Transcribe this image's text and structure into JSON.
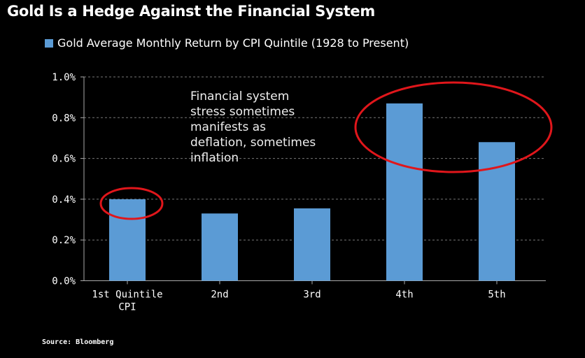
{
  "title": "Gold Is a Hedge Against the Financial System",
  "source": "Source: Bloomberg",
  "annotation": [
    "Financial system",
    "stress sometimes",
    "manifests as",
    "deflation, sometimes",
    "inflation"
  ],
  "colors": {
    "bar": "#5b9bd5",
    "highlight": "#e0161b"
  },
  "chart_data": {
    "type": "bar",
    "title": "Gold Is a Hedge Against the Financial System",
    "legend": [
      "Gold Average Monthly Return by CPI Quintile (1928 to Present)"
    ],
    "legend_position": "top-left",
    "categories": [
      "1st Quintile CPI",
      "2nd",
      "3rd",
      "4th",
      "5th"
    ],
    "category_lines": [
      [
        "1st Quintile",
        "CPI"
      ],
      [
        "2nd"
      ],
      [
        "3rd"
      ],
      [
        "4th"
      ],
      [
        "5th"
      ]
    ],
    "values": [
      0.4,
      0.33,
      0.355,
      0.87,
      0.68
    ],
    "unit": "%",
    "ylim": [
      0,
      1.0
    ],
    "yticks": [
      "0.0%",
      "0.2%",
      "0.4%",
      "0.6%",
      "0.8%",
      "1.0%"
    ],
    "grid": true,
    "highlighted": [
      "1st Quintile CPI",
      "4th",
      "5th"
    ]
  }
}
